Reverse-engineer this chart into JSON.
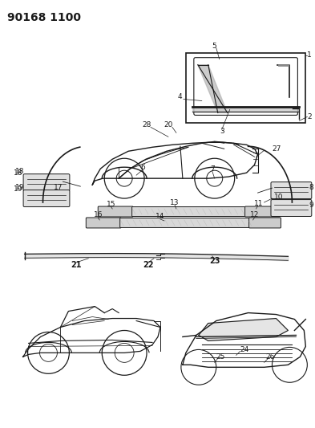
{
  "title_code": "90168 1100",
  "background_color": "#ffffff",
  "line_color": "#1a1a1a",
  "figsize": [
    3.93,
    5.33
  ],
  "dpi": 100,
  "font_size_title": 10,
  "font_size_parts": 6.5
}
